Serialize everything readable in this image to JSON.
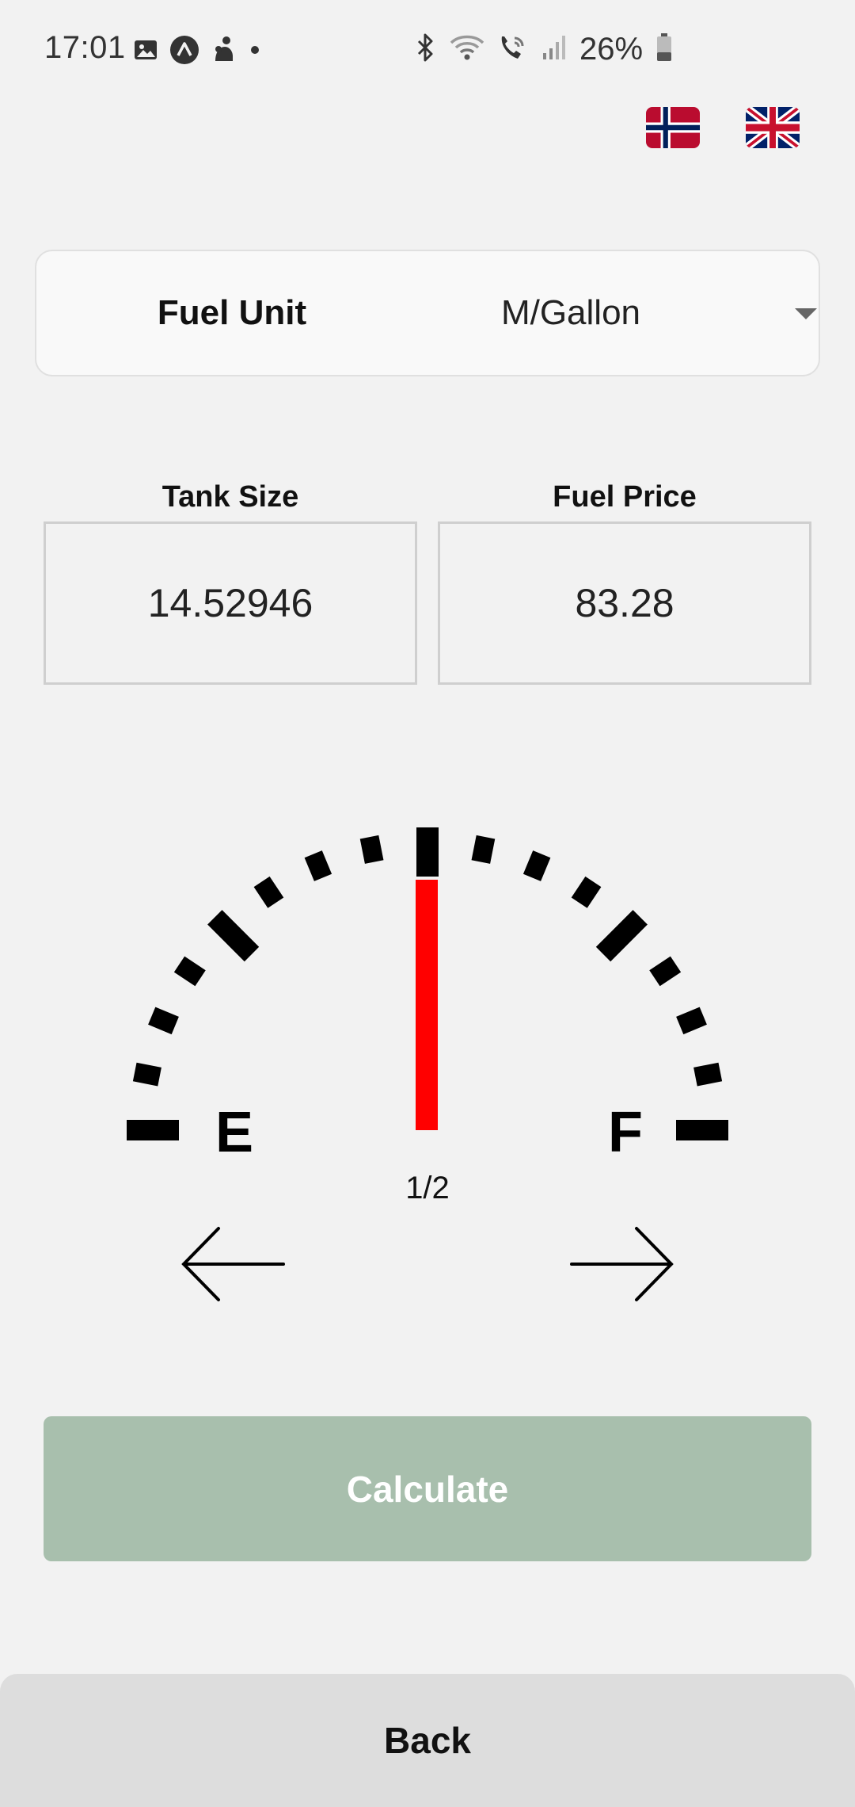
{
  "status_bar": {
    "time": "17:01",
    "battery": "26%",
    "left_icons": [
      "gallery-icon",
      "app-icon",
      "notification-icon",
      "dot-icon"
    ],
    "right_icons": [
      "bluetooth-icon",
      "wifi-icon",
      "wifi-calling-icon",
      "signal-icon",
      "battery-icon"
    ]
  },
  "languages": [
    {
      "name": "norwegian-flag-icon"
    },
    {
      "name": "uk-flag-icon"
    }
  ],
  "fuel_unit": {
    "label": "Fuel Unit",
    "selected": "M/Gallon"
  },
  "tank_size": {
    "label": "Tank Size",
    "value": "14.52946"
  },
  "fuel_price": {
    "label": "Fuel Price",
    "value": "83.28"
  },
  "gauge": {
    "empty_label": "E",
    "full_label": "F",
    "fraction_label": "1/2",
    "level": 0.5,
    "needle_color": "#ff0000"
  },
  "buttons": {
    "calculate": "Calculate",
    "back": "Back"
  },
  "colors": {
    "background": "#f2f2f2",
    "calculate_button": "#a8bfad",
    "back_button": "#dddddd"
  }
}
